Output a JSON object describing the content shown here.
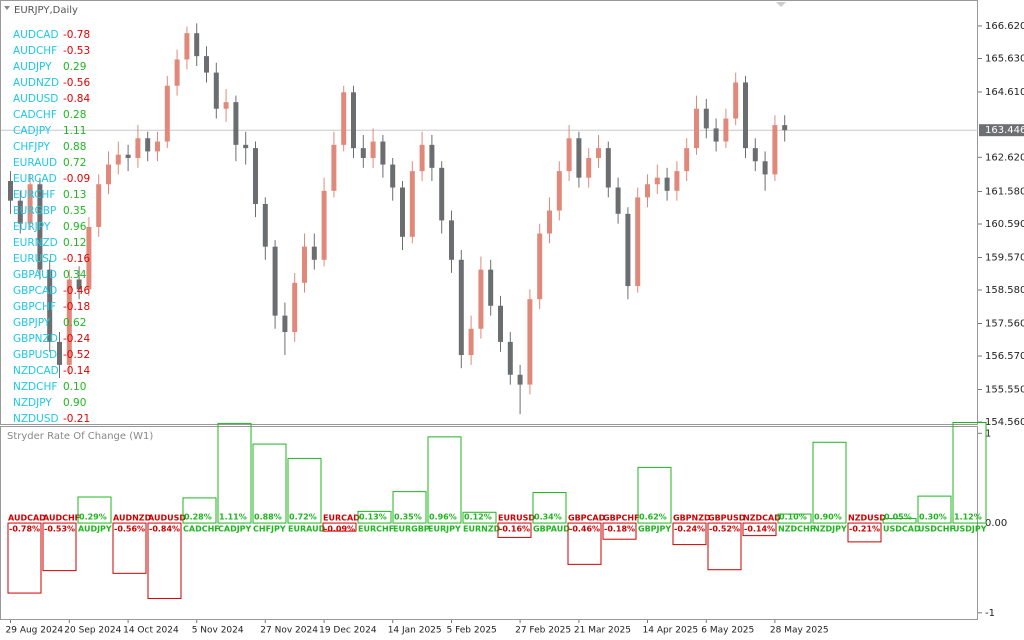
{
  "chart_data": [
    {
      "type": "candlestick",
      "title": "EURJPY,Daily",
      "categories": [
        "29 Aug 2024",
        null,
        null,
        null,
        null,
        null,
        "20 Sep 2024",
        null,
        null,
        null,
        null,
        null,
        "14 Oct 2024",
        null,
        null,
        null,
        null,
        null,
        null,
        "5 Nov 2024",
        null,
        null,
        null,
        null,
        null,
        null,
        "27 Nov 2024",
        null,
        null,
        null,
        null,
        null,
        "19 Dec 2024",
        null,
        null,
        null,
        null,
        null,
        null,
        "14 Jan 2025",
        null,
        null,
        null,
        null,
        null,
        "5 Feb 2025",
        null,
        null,
        null,
        null,
        null,
        null,
        "27 Feb 2025",
        null,
        null,
        null,
        null,
        null,
        "21 Mar 2025",
        null,
        null,
        null,
        null,
        null,
        null,
        "14 Apr 2025",
        null,
        null,
        null,
        null,
        null,
        "6 May 2025",
        null,
        null,
        null,
        null,
        null,
        null,
        "28 May 2025",
        null
      ],
      "candles": [
        [
          161.9,
          162.2,
          160.9,
          161.3
        ],
        [
          161.3,
          161.6,
          160.3,
          160.6
        ],
        [
          160.6,
          162.1,
          160.4,
          161.8
        ],
        [
          161.8,
          162.0,
          158.9,
          159.2
        ],
        [
          159.2,
          159.5,
          156.7,
          157.0
        ],
        [
          157.0,
          157.3,
          155.9,
          156.3
        ],
        [
          156.3,
          159.2,
          156.0,
          158.9
        ],
        [
          158.9,
          159.3,
          158.3,
          158.6
        ],
        [
          158.6,
          160.8,
          158.4,
          160.5
        ],
        [
          160.5,
          162.1,
          160.2,
          161.8
        ],
        [
          161.8,
          162.8,
          161.5,
          162.4
        ],
        [
          162.4,
          163.1,
          162.1,
          162.7
        ],
        [
          162.7,
          163.0,
          162.2,
          162.6
        ],
        [
          162.6,
          163.6,
          162.3,
          163.2
        ],
        [
          163.2,
          163.4,
          162.5,
          162.8
        ],
        [
          162.8,
          163.4,
          162.5,
          163.1
        ],
        [
          163.1,
          165.1,
          162.9,
          164.8
        ],
        [
          164.8,
          165.9,
          164.5,
          165.6
        ],
        [
          165.6,
          166.6,
          165.3,
          166.4
        ],
        [
          166.4,
          166.7,
          165.4,
          165.7
        ],
        [
          165.7,
          166.0,
          164.9,
          165.2
        ],
        [
          165.2,
          165.5,
          163.8,
          164.1
        ],
        [
          164.1,
          164.7,
          163.7,
          164.3
        ],
        [
          164.3,
          164.5,
          162.5,
          163.0
        ],
        [
          163.0,
          163.4,
          162.4,
          162.9
        ],
        [
          162.9,
          163.1,
          160.8,
          161.2
        ],
        [
          161.2,
          161.4,
          159.5,
          159.9
        ],
        [
          159.9,
          160.1,
          157.4,
          157.8
        ],
        [
          157.8,
          158.2,
          156.6,
          157.3
        ],
        [
          157.3,
          159.1,
          157.0,
          158.8
        ],
        [
          158.8,
          160.3,
          158.5,
          159.9
        ],
        [
          159.9,
          160.3,
          159.2,
          159.5
        ],
        [
          159.5,
          162.0,
          159.3,
          161.6
        ],
        [
          161.6,
          163.4,
          161.4,
          163.0
        ],
        [
          163.0,
          164.8,
          162.8,
          164.6
        ],
        [
          164.6,
          164.8,
          162.6,
          162.9
        ],
        [
          162.9,
          163.3,
          162.3,
          162.6
        ],
        [
          162.6,
          163.5,
          162.3,
          163.1
        ],
        [
          163.1,
          163.3,
          162.0,
          162.4
        ],
        [
          162.4,
          162.6,
          161.3,
          161.7
        ],
        [
          161.7,
          161.9,
          159.8,
          160.2
        ],
        [
          160.2,
          162.5,
          160.0,
          162.2
        ],
        [
          162.2,
          163.4,
          161.9,
          163.0
        ],
        [
          163.0,
          163.3,
          161.9,
          162.3
        ],
        [
          162.3,
          162.5,
          160.3,
          160.7
        ],
        [
          160.7,
          161.0,
          159.1,
          159.5
        ],
        [
          159.5,
          159.8,
          156.2,
          156.6
        ],
        [
          156.6,
          157.8,
          156.3,
          157.4
        ],
        [
          157.4,
          159.6,
          157.1,
          159.2
        ],
        [
          159.2,
          159.5,
          157.8,
          158.1
        ],
        [
          158.1,
          158.4,
          156.7,
          157.0
        ],
        [
          157.0,
          157.3,
          155.7,
          156.0
        ],
        [
          156.0,
          156.3,
          154.8,
          155.7
        ],
        [
          155.7,
          158.6,
          155.4,
          158.3
        ],
        [
          158.3,
          160.6,
          158.0,
          160.3
        ],
        [
          160.3,
          161.4,
          160.0,
          161.0
        ],
        [
          161.0,
          162.5,
          160.7,
          162.2
        ],
        [
          162.2,
          163.6,
          161.9,
          163.2
        ],
        [
          163.2,
          163.4,
          161.7,
          162.0
        ],
        [
          162.0,
          162.9,
          161.7,
          162.6
        ],
        [
          162.6,
          163.3,
          162.3,
          162.9
        ],
        [
          162.9,
          163.1,
          161.4,
          161.7
        ],
        [
          161.7,
          162.0,
          160.6,
          160.9
        ],
        [
          160.9,
          161.1,
          158.3,
          158.7
        ],
        [
          158.7,
          161.7,
          158.5,
          161.4
        ],
        [
          161.4,
          162.1,
          161.1,
          161.8
        ],
        [
          161.8,
          162.4,
          161.5,
          162.0
        ],
        [
          162.0,
          162.3,
          161.3,
          161.6
        ],
        [
          161.6,
          162.5,
          161.3,
          162.2
        ],
        [
          162.2,
          163.2,
          161.9,
          162.9
        ],
        [
          162.9,
          164.5,
          162.7,
          164.1
        ],
        [
          164.1,
          164.4,
          163.2,
          163.5
        ],
        [
          163.5,
          163.8,
          162.8,
          163.1
        ],
        [
          163.1,
          164.1,
          162.9,
          163.8
        ],
        [
          163.8,
          165.2,
          163.6,
          164.9
        ],
        [
          164.9,
          165.1,
          162.6,
          162.9
        ],
        [
          162.9,
          163.2,
          162.2,
          162.5
        ],
        [
          162.5,
          162.8,
          161.6,
          162.1
        ],
        [
          162.1,
          163.9,
          161.9,
          163.6
        ],
        [
          163.6,
          163.9,
          163.1,
          163.446
        ]
      ],
      "up_color": "#e0897a",
      "down_color": "#6b6e70",
      "ylim": [
        154.47,
        167.41
      ],
      "yticks": [
        {
          "value": 166.62,
          "label": "166.620"
        },
        {
          "value": 165.63,
          "label": "165.630"
        },
        {
          "value": 164.61,
          "label": "164.610"
        },
        {
          "value": 162.62,
          "label": "162.620"
        },
        {
          "value": 161.58,
          "label": "161.580"
        },
        {
          "value": 160.59,
          "label": "160.590"
        },
        {
          "value": 159.57,
          "label": "159.570"
        },
        {
          "value": 158.58,
          "label": "158.580"
        },
        {
          "value": 157.56,
          "label": "157.560"
        },
        {
          "value": 156.57,
          "label": "156.570"
        },
        {
          "value": 155.55,
          "label": "155.550"
        },
        {
          "value": 154.56,
          "label": "154.560"
        }
      ],
      "current_price": 163.446,
      "current_price_color": "#c8c8c8",
      "pair_panel": [
        {
          "pair": "AUDCAD",
          "value": "-0.78"
        },
        {
          "pair": "AUDCHF",
          "value": "-0.53"
        },
        {
          "pair": "AUDJPY",
          "value": "0.29"
        },
        {
          "pair": "AUDNZD",
          "value": "-0.56"
        },
        {
          "pair": "AUDUSD",
          "value": "-0.84"
        },
        {
          "pair": "CADCHF",
          "value": "0.28"
        },
        {
          "pair": "CADJPY",
          "value": "1.11"
        },
        {
          "pair": "CHFJPY",
          "value": "0.88"
        },
        {
          "pair": "EURAUD",
          "value": "0.72"
        },
        {
          "pair": "EURCAD",
          "value": "-0.09"
        },
        {
          "pair": "EURCHF",
          "value": "0.13"
        },
        {
          "pair": "EURGBP",
          "value": "0.35"
        },
        {
          "pair": "EURJPY",
          "value": "0.96"
        },
        {
          "pair": "EURNZD",
          "value": "0.12"
        },
        {
          "pair": "EURUSD",
          "value": "-0.16"
        },
        {
          "pair": "GBPAUD",
          "value": "0.34"
        },
        {
          "pair": "GBPCAD",
          "value": "-0.46"
        },
        {
          "pair": "GBPCHF",
          "value": "-0.18"
        },
        {
          "pair": "GBPJPY",
          "value": "0.62"
        },
        {
          "pair": "GBPNZD",
          "value": "-0.24"
        },
        {
          "pair": "GBPUSD",
          "value": "-0.52"
        },
        {
          "pair": "NZDCAD",
          "value": "-0.14"
        },
        {
          "pair": "NZDCHF",
          "value": "0.10"
        },
        {
          "pair": "NZDJPY",
          "value": "0.90"
        },
        {
          "pair": "NZDUSD",
          "value": "-0.21"
        }
      ]
    },
    {
      "type": "bar",
      "title": "Stryder Rate Of Change (W1)",
      "categories": [
        "AUDCAD",
        "AUDCHF",
        "AUDJPY",
        "AUDNZD",
        "AUDUSD",
        "CADCHF",
        "CADJPY",
        "CHFJPY",
        "EURAUD",
        "EURCAD",
        "EURCHF",
        "EURGBP",
        "EURJPY",
        "EURNZD",
        "EURUSD",
        "GBPAUD",
        "GBPCAD",
        "GBPCHF",
        "GBPJPY",
        "GBPNZD",
        "GBPUSD",
        "NZDCAD",
        "NZDCHF",
        "NZDJPY",
        "NZDUSD",
        "USDCAD",
        "USDCHF",
        "USDJPY"
      ],
      "values": [
        -0.78,
        -0.53,
        0.29,
        -0.56,
        -0.84,
        0.28,
        1.11,
        0.88,
        0.72,
        -0.09,
        0.13,
        0.35,
        0.96,
        0.12,
        -0.16,
        0.34,
        -0.46,
        -0.18,
        0.62,
        -0.24,
        -0.52,
        -0.14,
        0.1,
        0.9,
        -0.21,
        0.05,
        0.3,
        1.12
      ],
      "value_labels": [
        "-0.78%",
        "-0.53%",
        "0.29%",
        "-0.56%",
        "-0.84%",
        "0.28%",
        "1.11%",
        "0.88%",
        "0.72%",
        "-0.09%",
        "0.13%",
        "0.35%",
        "0.96%",
        "0.12%",
        "-0.16%",
        "0.34%",
        "-0.46%",
        "-0.18%",
        "0.62%",
        "-0.24%",
        "-0.52%",
        "-0.14%",
        "0.10%",
        "0.90%",
        "-0.21%",
        "0.05%",
        "0.30%",
        "1.12%"
      ],
      "positive_color": "#1fb51f",
      "negative_color": "#cc0000",
      "ylim": [
        -1.08,
        1.07
      ],
      "yticks": [
        1,
        {
          "value": 0,
          "label": "0.00"
        },
        -1
      ]
    }
  ]
}
